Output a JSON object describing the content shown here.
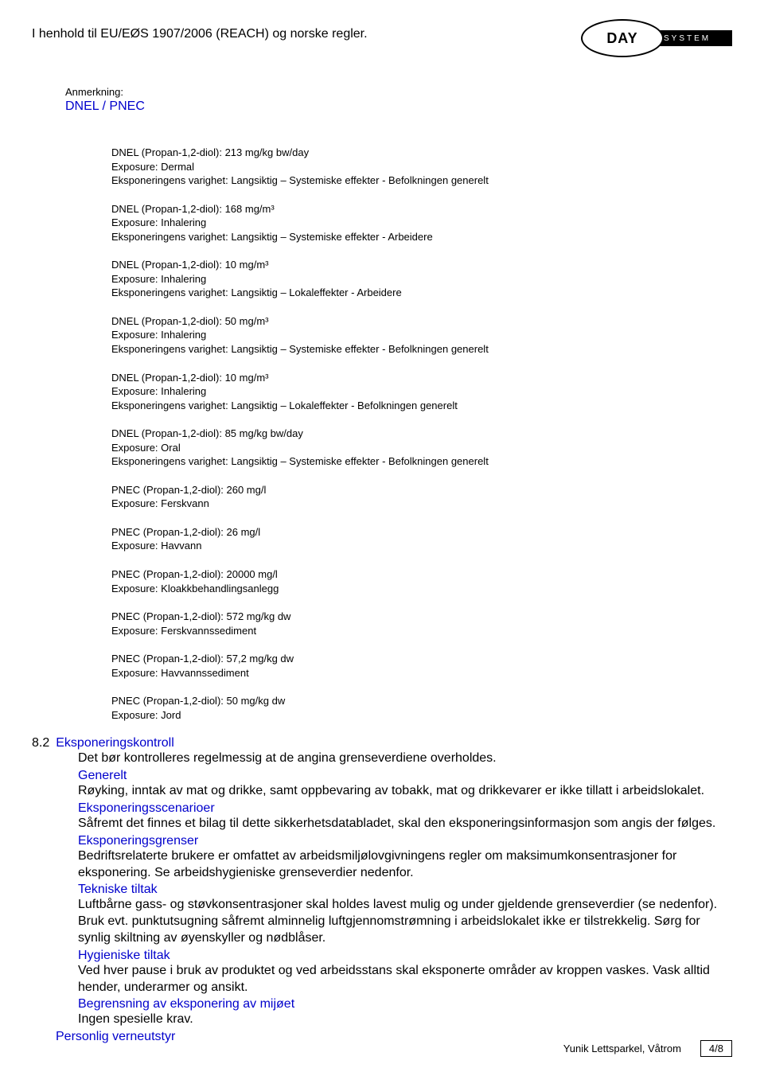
{
  "header": {
    "regulation": "I henhold til EU/EØS 1907/2006 (REACH) og norske regler.",
    "logo_day": "DAY",
    "logo_system": "SYSTEM"
  },
  "section": {
    "anmerkning_label": "Anmerkning:",
    "dnel_pnec": "DNEL / PNEC"
  },
  "blocks": [
    {
      "l1": "DNEL (Propan-1,2-diol): 213 mg/kg bw/day",
      "l2": "Exposure: Dermal",
      "l3": "Eksponeringens varighet: Langsiktig – Systemiske effekter - Befolkningen generelt"
    },
    {
      "l1": "DNEL (Propan-1,2-diol): 168 mg/m³",
      "l2": "Exposure: Inhalering",
      "l3": "Eksponeringens varighet: Langsiktig – Systemiske effekter - Arbeidere"
    },
    {
      "l1": "DNEL (Propan-1,2-diol): 10 mg/m³",
      "l2": "Exposure: Inhalering",
      "l3": "Eksponeringens varighet: Langsiktig – Lokaleffekter - Arbeidere"
    },
    {
      "l1": "DNEL (Propan-1,2-diol): 50 mg/m³",
      "l2": "Exposure: Inhalering",
      "l3": "Eksponeringens varighet: Langsiktig – Systemiske effekter - Befolkningen generelt"
    },
    {
      "l1": "DNEL (Propan-1,2-diol): 10 mg/m³",
      "l2": "Exposure: Inhalering",
      "l3": "Eksponeringens varighet: Langsiktig – Lokaleffekter - Befolkningen generelt"
    },
    {
      "l1": "DNEL (Propan-1,2-diol): 85 mg/kg bw/day",
      "l2": "Exposure: Oral",
      "l3": "Eksponeringens varighet: Langsiktig – Systemiske effekter - Befolkningen generelt"
    },
    {
      "l1": "PNEC (Propan-1,2-diol): 260 mg/l",
      "l2": "Exposure: Ferskvann"
    },
    {
      "l1": "PNEC (Propan-1,2-diol): 26 mg/l",
      "l2": "Exposure: Havvann"
    },
    {
      "l1": "PNEC (Propan-1,2-diol): 20000 mg/l",
      "l2": "Exposure: Kloakkbehandlingsanlegg"
    },
    {
      "l1": "PNEC (Propan-1,2-diol): 572 mg/kg dw",
      "l2": "Exposure: Ferskvannssediment"
    },
    {
      "l1": "PNEC (Propan-1,2-diol): 57,2 mg/kg dw",
      "l2": "Exposure: Havvannssediment"
    },
    {
      "l1": "PNEC (Propan-1,2-diol): 50 mg/kg dw",
      "l2": "Exposure: Jord"
    }
  ],
  "s82": {
    "num": "8.2",
    "title": "Eksponeringskontroll",
    "intro": "Det bør kontrolleres regelmessig at de angina grenseverdiene overholdes.",
    "generelt_h": "Generelt",
    "generelt_t": "Røyking, inntak av mat og drikke, samt oppbevaring av tobakk, mat og drikkevarer er ikke tillatt i arbeidslokalet.",
    "scenario_h": "Eksponeringsscenarioer",
    "scenario_t": "Såfremt det finnes et bilag til dette sikkerhetsdatabladet, skal den eksponeringsinformasjon som angis der følges.",
    "grenser_h": "Eksponeringsgrenser",
    "grenser_t": "Bedriftsrelaterte brukere er omfattet av arbeidsmiljølovgivningens regler om maksimumkonsentrasjoner for eksponering. Se arbeidshygieniske grenseverdier nedenfor.",
    "tekniske_h": "Tekniske tiltak",
    "tekniske_t": "Luftbårne gass- og støvkonsentrasjoner skal holdes lavest mulig og under gjeldende grenseverdier (se nedenfor). Bruk evt. punktutsugning såfremt alminnelig luftgjennomstrømning i arbeidslokalet ikke er tilstrekkelig. Sørg for synlig skiltning av øyenskyller og nødblåser.",
    "hygien_h": "Hygieniske tiltak",
    "hygien_t": "Ved hver pause i bruk av produktet og ved arbeidsstans skal eksponerte områder av kroppen vaskes. Vask alltid hender, underarmer og ansikt.",
    "begrens_h": "Begrensning av eksponering av mijøet",
    "begrens_t": "Ingen spesielle krav.",
    "personlig_h": "Personlig verneutstyr"
  },
  "footer": {
    "product": "Yunik Lettsparkel, Våtrom",
    "page": "4/8"
  },
  "colors": {
    "blue": "#0000cc",
    "black": "#000000",
    "white": "#ffffff"
  },
  "typography": {
    "body_fontsize": 16,
    "data_fontsize": 13,
    "font_family": "Arial"
  }
}
